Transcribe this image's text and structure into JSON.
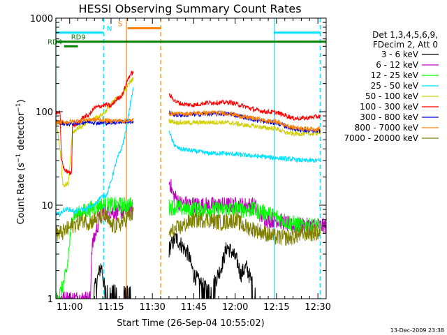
{
  "chart_data": {
    "type": "line",
    "title": "HESSI Observing Summary Count Rates",
    "xlabel": "Start Time (26-Sep-04 10:55:02)",
    "ylabel": "Count Rate (s⁻¹ detector⁻¹)",
    "ylabel_main": "Count Rate (s",
    "ylabel_sup1": "−1",
    "ylabel_mid": " detector",
    "ylabel_sup2": "−1",
    "ylabel_end": ")",
    "x_range_min": [
      0,
      98
    ],
    "ylim": [
      1,
      1000
    ],
    "y_scale": "log",
    "x_ticks": [
      {
        "label": "11:00",
        "min": 5
      },
      {
        "label": "11:15",
        "min": 20
      },
      {
        "label": "11:30",
        "min": 35
      },
      {
        "label": "11:45",
        "min": 50
      },
      {
        "label": "12:00",
        "min": 65
      },
      {
        "label": "12:15",
        "min": 80
      },
      {
        "label": "12:30",
        "min": 95
      }
    ],
    "y_ticks": [
      {
        "label": "1",
        "v": 1
      },
      {
        "label": "10",
        "v": 10
      },
      {
        "label": "100",
        "v": 100
      },
      {
        "label": "1000",
        "v": 1000
      }
    ],
    "legend_header": [
      "Det 1,3,4,5,6,9,",
      "FDecim 2, Att 0"
    ],
    "legend_position": "right",
    "series": [
      {
        "name": "3 - 6 keV",
        "color": "#000000",
        "pts": [
          [
            0,
            1
          ],
          [
            13,
            1
          ],
          [
            16.5,
            2.3
          ],
          [
            17.8,
            1.2
          ],
          [
            38,
            1
          ],
          [
            41.2,
            3.5
          ],
          [
            43.5,
            4.5
          ],
          [
            48,
            3
          ],
          [
            50,
            1.8
          ],
          [
            52,
            1.5
          ],
          [
            54,
            1.3
          ],
          [
            56,
            1.2
          ],
          [
            58,
            1.6
          ],
          [
            60,
            2.2
          ],
          [
            62,
            3.6
          ],
          [
            64,
            3.1
          ],
          [
            66,
            2.4
          ],
          [
            67,
            1.8
          ],
          [
            69,
            2.2
          ],
          [
            71,
            1.5
          ],
          [
            73,
            1
          ],
          [
            98,
            1
          ]
        ]
      },
      {
        "name": "6 - 12 keV",
        "color": "#c000c0",
        "pts": [
          [
            0,
            1
          ],
          [
            12.5,
            1
          ],
          [
            13,
            3.5
          ],
          [
            16.5,
            8.5
          ],
          [
            25,
            8.5
          ],
          [
            38,
            10
          ],
          [
            41.2,
            18
          ],
          [
            42.5,
            13
          ],
          [
            45,
            10.5
          ],
          [
            52,
            10
          ],
          [
            60,
            10
          ],
          [
            72,
            10
          ],
          [
            74,
            8
          ],
          [
            76,
            7
          ],
          [
            80,
            7
          ],
          [
            83,
            6.5
          ],
          [
            85,
            6
          ],
          [
            98,
            6
          ]
        ]
      },
      {
        "name": "12 - 25 keV",
        "color": "#00ff00",
        "pts": [
          [
            0,
            1
          ],
          [
            2,
            1.2
          ],
          [
            4,
            2
          ],
          [
            6,
            8
          ],
          [
            8,
            8
          ],
          [
            10,
            8.5
          ],
          [
            12,
            9
          ],
          [
            14,
            9.5
          ],
          [
            16,
            10
          ],
          [
            18,
            10
          ],
          [
            25,
            10
          ],
          [
            38,
            10
          ],
          [
            41.2,
            9.5
          ],
          [
            43.5,
            9.5
          ],
          [
            45,
            9.3
          ],
          [
            50,
            9
          ],
          [
            55,
            9
          ],
          [
            60,
            9
          ],
          [
            65,
            9
          ],
          [
            70,
            9
          ],
          [
            75,
            8.5
          ],
          [
            80,
            7.5
          ],
          [
            85,
            6.5
          ],
          [
            90,
            6
          ],
          [
            96,
            6
          ]
        ]
      },
      {
        "name": "25 - 50 keV",
        "color": "#00e0ff",
        "pts": [
          [
            0,
            8
          ],
          [
            1.5,
            8
          ],
          [
            2.3,
            8.5
          ],
          [
            3,
            9
          ],
          [
            5,
            9
          ],
          [
            7,
            8.5
          ],
          [
            9,
            9
          ],
          [
            11,
            9
          ],
          [
            12,
            9.5
          ],
          [
            14,
            10
          ],
          [
            16,
            12
          ],
          [
            18.5,
            13
          ],
          [
            20,
            18
          ],
          [
            22,
            30
          ],
          [
            24,
            42
          ],
          [
            25,
            55
          ],
          [
            26,
            80
          ],
          [
            27,
            120
          ],
          [
            28,
            175
          ],
          [
            38,
            50
          ],
          [
            41.2,
            62
          ],
          [
            42,
            50
          ],
          [
            43.5,
            42
          ],
          [
            45,
            40
          ],
          [
            50,
            38
          ],
          [
            55,
            36
          ],
          [
            60,
            36
          ],
          [
            65,
            35
          ],
          [
            70,
            34
          ],
          [
            75,
            33
          ],
          [
            80,
            32
          ],
          [
            85,
            31
          ],
          [
            90,
            30
          ],
          [
            96,
            30
          ]
        ]
      },
      {
        "name": "50 - 100 keV",
        "color": "#d0d000",
        "pts": [
          [
            0,
            82
          ],
          [
            1.5,
            40
          ],
          [
            2.5,
            17
          ],
          [
            3,
            16.5
          ],
          [
            4.5,
            17
          ],
          [
            5.5,
            40
          ],
          [
            6,
            60
          ],
          [
            8,
            67
          ],
          [
            10,
            70
          ],
          [
            12,
            80
          ],
          [
            14,
            85
          ],
          [
            16,
            90
          ],
          [
            18,
            100
          ],
          [
            20,
            120
          ],
          [
            22,
            140
          ],
          [
            24,
            150
          ],
          [
            25,
            170
          ],
          [
            26,
            190
          ],
          [
            27,
            210
          ],
          [
            28,
            225
          ],
          [
            38,
            85
          ],
          [
            41.2,
            80
          ],
          [
            43.5,
            77
          ],
          [
            46,
            76
          ],
          [
            50,
            76
          ],
          [
            55,
            77
          ],
          [
            60,
            77
          ],
          [
            63,
            76
          ],
          [
            65,
            75
          ],
          [
            68,
            72
          ],
          [
            72,
            70
          ],
          [
            76,
            67
          ],
          [
            80,
            66
          ],
          [
            83,
            60
          ],
          [
            86,
            58
          ],
          [
            90,
            58
          ],
          [
            94,
            58
          ],
          [
            96,
            60
          ]
        ]
      },
      {
        "name": "100 - 300 keV",
        "color": "#ff0000",
        "pts": [
          [
            0,
            100
          ],
          [
            1.5,
            98
          ],
          [
            2,
            32
          ],
          [
            3,
            24
          ],
          [
            4,
            23
          ],
          [
            5,
            22
          ],
          [
            5.7,
            22
          ],
          [
            6,
            70
          ],
          [
            8,
            75
          ],
          [
            10,
            88
          ],
          [
            12,
            92
          ],
          [
            14,
            110
          ],
          [
            18,
            118
          ],
          [
            20,
            115
          ],
          [
            22,
            135
          ],
          [
            24,
            150
          ],
          [
            25,
            180
          ],
          [
            26,
            220
          ],
          [
            27,
            250
          ],
          [
            28,
            265
          ],
          [
            38,
            150
          ],
          [
            41.2,
            150
          ],
          [
            43.5,
            128
          ],
          [
            46,
            120
          ],
          [
            50,
            118
          ],
          [
            55,
            125
          ],
          [
            60,
            125
          ],
          [
            63,
            126
          ],
          [
            65,
            122
          ],
          [
            68,
            115
          ],
          [
            72,
            105
          ],
          [
            76,
            100
          ],
          [
            80,
            98
          ],
          [
            83,
            92
          ],
          [
            86,
            85
          ],
          [
            90,
            85
          ],
          [
            94,
            88
          ],
          [
            96,
            90
          ]
        ]
      },
      {
        "name": "300 - 800 keV",
        "color": "#0000e0",
        "pts": [
          [
            0,
            78
          ],
          [
            3,
            75
          ],
          [
            5,
            74
          ],
          [
            7,
            75
          ],
          [
            9,
            76
          ],
          [
            11,
            78
          ],
          [
            13,
            78
          ],
          [
            15,
            76
          ],
          [
            17,
            76
          ],
          [
            19,
            76
          ],
          [
            21,
            77
          ],
          [
            23,
            78
          ],
          [
            25,
            78
          ],
          [
            27,
            78
          ],
          [
            38,
            95
          ],
          [
            41.2,
            96
          ],
          [
            43.5,
            92
          ],
          [
            46,
            92
          ],
          [
            50,
            93
          ],
          [
            55,
            95
          ],
          [
            60,
            95
          ],
          [
            63,
            95
          ],
          [
            65,
            92
          ],
          [
            68,
            88
          ],
          [
            72,
            82
          ],
          [
            76,
            78
          ],
          [
            80,
            76
          ],
          [
            83,
            70
          ],
          [
            86,
            66
          ],
          [
            90,
            63
          ],
          [
            94,
            62
          ],
          [
            96,
            62
          ]
        ]
      },
      {
        "name": "800 - 7000 keV",
        "color": "#ff8000",
        "pts": [
          [
            0,
            77
          ],
          [
            3,
            77
          ],
          [
            5,
            78
          ],
          [
            7,
            79
          ],
          [
            9,
            80
          ],
          [
            11,
            82
          ],
          [
            13,
            82
          ],
          [
            15,
            82
          ],
          [
            17,
            82
          ],
          [
            19,
            80
          ],
          [
            21,
            80
          ],
          [
            23,
            80
          ],
          [
            25,
            80
          ],
          [
            27,
            80
          ],
          [
            38,
            94
          ],
          [
            41.2,
            96
          ],
          [
            43.5,
            95
          ],
          [
            46,
            95
          ],
          [
            50,
            96
          ],
          [
            55,
            97
          ],
          [
            60,
            97
          ],
          [
            63,
            96
          ],
          [
            65,
            93
          ],
          [
            68,
            88
          ],
          [
            72,
            85
          ],
          [
            76,
            80
          ],
          [
            80,
            78
          ],
          [
            83,
            72
          ],
          [
            86,
            68
          ],
          [
            90,
            66
          ],
          [
            94,
            65
          ],
          [
            96,
            66
          ]
        ]
      },
      {
        "name": "7000 - 20000 keV",
        "color": "#808000",
        "pts": [
          [
            0,
            5
          ],
          [
            2,
            5
          ],
          [
            4,
            5.5
          ],
          [
            6,
            6
          ],
          [
            8,
            6.5
          ],
          [
            10,
            7
          ],
          [
            12,
            6.5
          ],
          [
            14,
            7
          ],
          [
            16,
            7.5
          ],
          [
            18,
            7.5
          ],
          [
            20,
            6
          ],
          [
            22,
            6
          ],
          [
            24,
            6.5
          ],
          [
            26,
            7.5
          ],
          [
            28,
            8
          ],
          [
            38,
            4.5
          ],
          [
            41.2,
            5
          ],
          [
            43.5,
            5.5
          ],
          [
            46,
            6
          ],
          [
            50,
            7
          ],
          [
            55,
            7
          ],
          [
            60,
            6.5
          ],
          [
            65,
            7
          ],
          [
            68,
            6
          ],
          [
            72,
            5.5
          ],
          [
            76,
            5
          ],
          [
            80,
            4.5
          ],
          [
            85,
            4.5
          ],
          [
            90,
            5
          ],
          [
            96,
            5
          ]
        ]
      }
    ],
    "flags": [
      {
        "label": "N",
        "color": "#00e0ff",
        "y": 700,
        "segments": [
          [
            0,
            17
          ],
          [
            79,
            96
          ]
        ],
        "label_min": 18.5
      },
      {
        "label": "S",
        "color": "#ff8000",
        "y": 780,
        "segments": [
          [
            26,
            38
          ]
        ],
        "label_min": 22.5
      },
      {
        "label": "RD9",
        "color": "#008000",
        "y": 560,
        "segments": [
          [
            0,
            98
          ]
        ],
        "label_min": 5.5
      },
      {
        "label": "RD4",
        "color": "#008000",
        "y": 500,
        "segments": [
          [
            3,
            8
          ]
        ],
        "label_min": -3
      }
    ],
    "vlines": [
      {
        "min": 0,
        "color": "#00e0ff",
        "dash": false
      },
      {
        "min": 17.3,
        "color": "#00e0ff",
        "dash": true
      },
      {
        "min": 25.6,
        "color": "#ff8000",
        "dash": false
      },
      {
        "min": 38,
        "color": "#ff8000",
        "dash": true
      },
      {
        "min": 79.3,
        "color": "#00e0ff",
        "dash": false
      },
      {
        "min": 95.8,
        "color": "#00e0ff",
        "dash": true
      }
    ],
    "footer_date": "13-Dec-2009 23:38"
  }
}
